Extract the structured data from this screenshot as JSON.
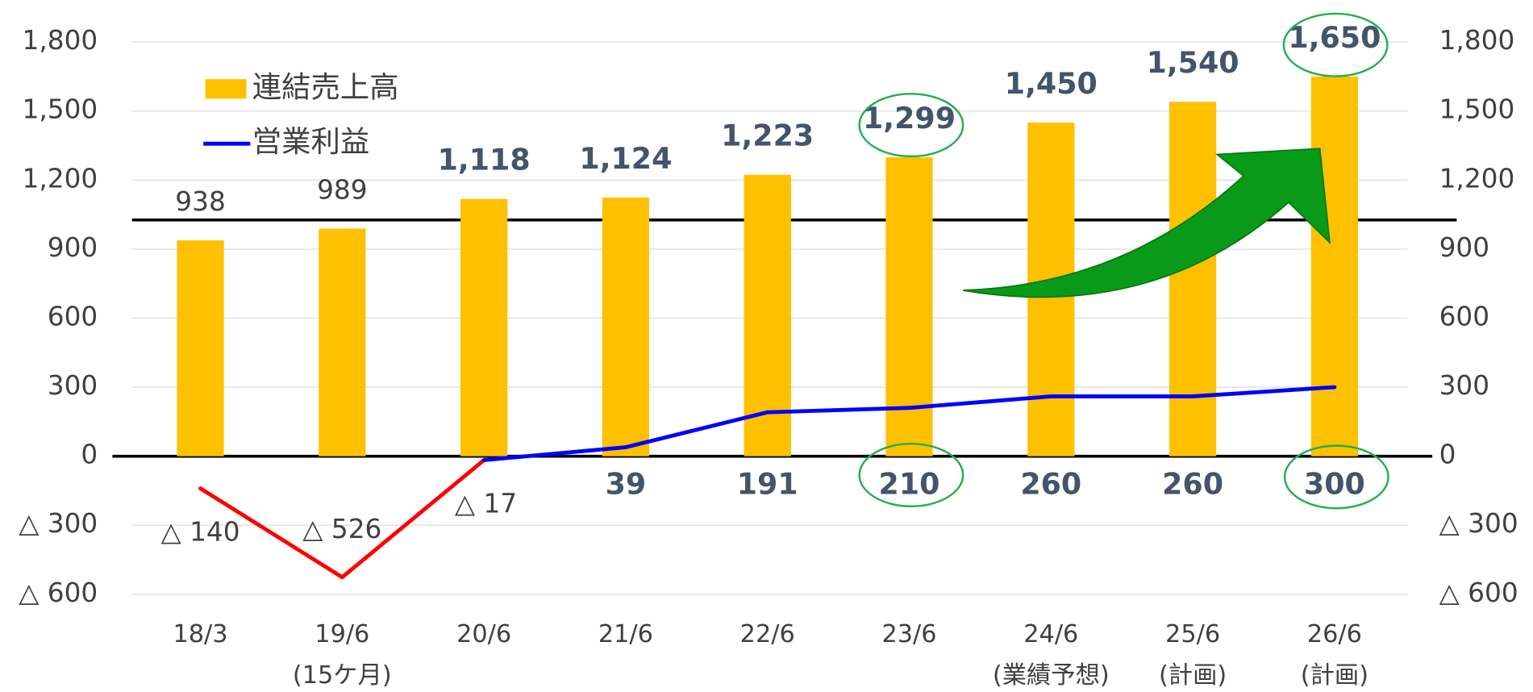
{
  "chart_data": {
    "type": "bar-line",
    "categories": [
      "18/3",
      "19/6",
      "20/6",
      "21/6",
      "22/6",
      "23/6",
      "24/6",
      "25/6",
      "26/6"
    ],
    "category_notes": [
      null,
      "(15ケ月)",
      null,
      null,
      null,
      null,
      "(業績予想)",
      "(計画)",
      "(計画)"
    ],
    "series": [
      {
        "name": "連結売上高",
        "type": "bar",
        "color": "#ffc000",
        "values": [
          938,
          989,
          1118,
          1124,
          1223,
          1299,
          1450,
          1540,
          1650
        ],
        "value_labels": [
          "938",
          "989",
          "1,118",
          "1,124",
          "1,223",
          "1,299",
          "1,450",
          "1,540",
          "1,650"
        ]
      },
      {
        "name": "営業利益",
        "type": "line",
        "color": "#0000ff",
        "negative_color": "#ff0000",
        "values": [
          -140,
          -526,
          -17,
          39,
          191,
          210,
          260,
          260,
          300
        ],
        "value_labels": [
          "△ 140",
          "△ 526",
          "△ 17",
          "39",
          "191",
          "210",
          "260",
          "260",
          "300"
        ]
      }
    ],
    "ylim": [
      -600,
      1800
    ],
    "yticks": [
      {
        "value": -600,
        "label": "△ 600"
      },
      {
        "value": -300,
        "label": "△ 300"
      },
      0,
      300,
      600,
      900,
      {
        "value": 1200,
        "label": "1,200"
      },
      {
        "value": 1500,
        "label": "1,500"
      },
      {
        "value": 1800,
        "label": "1,800"
      }
    ],
    "grid": true
  }
}
